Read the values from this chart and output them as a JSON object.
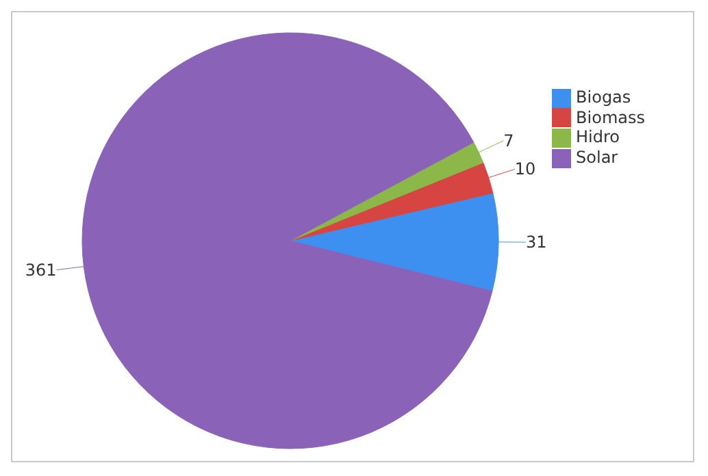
{
  "chart_data": {
    "type": "pie",
    "categories": [
      "Biogas",
      "Biomass",
      "Hidro",
      "Solar"
    ],
    "values": [
      31,
      10,
      7,
      361
    ],
    "colors": [
      "#3d8ff0",
      "#d64541",
      "#8cb84a",
      "#8a63b8"
    ],
    "data_labels": true,
    "legend": "top right"
  }
}
